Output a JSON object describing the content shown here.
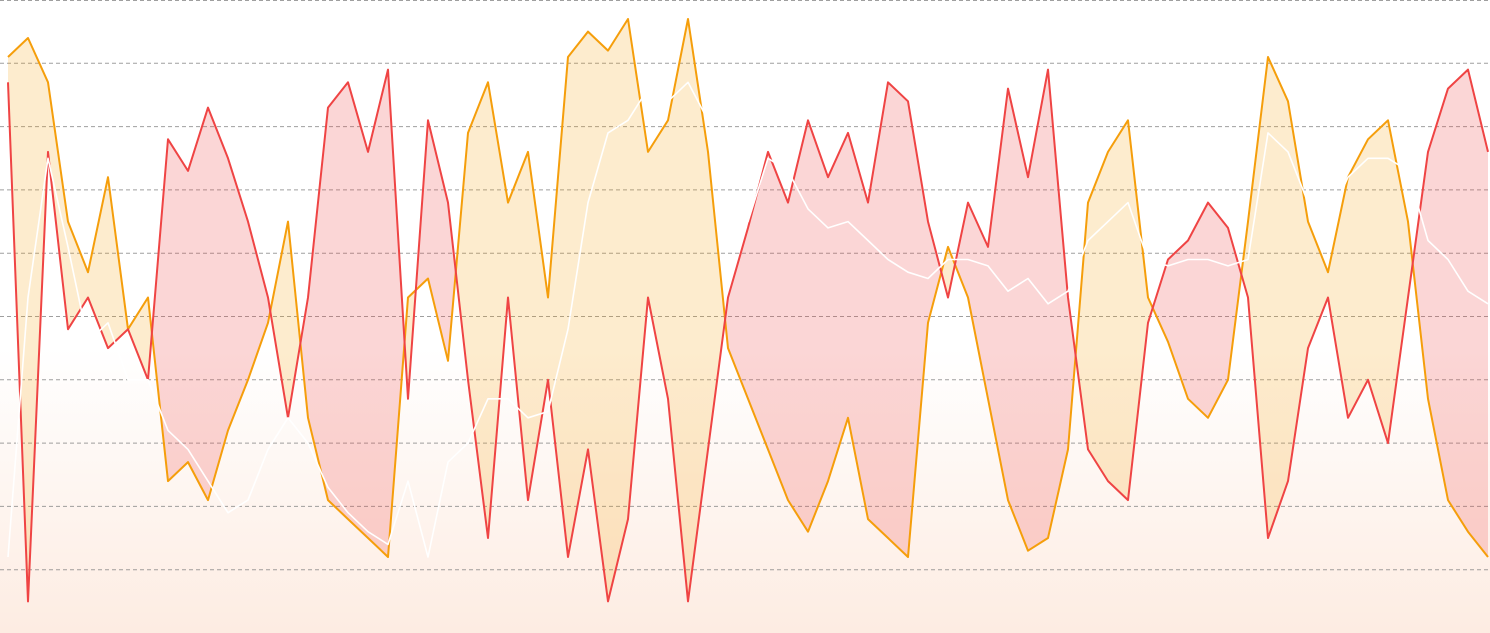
{
  "chart_data": {
    "type": "line",
    "ylim": [
      0,
      100
    ],
    "yticks": [
      10,
      20,
      30,
      40,
      50,
      60,
      70,
      80,
      90,
      100
    ],
    "grid": true,
    "series": [
      {
        "color": "#ef4444",
        "values": [
          87,
          5,
          76,
          48,
          53,
          45,
          48,
          40,
          78,
          73,
          83,
          75,
          65,
          53,
          34,
          53,
          83,
          87,
          76,
          89,
          37,
          81,
          68,
          40,
          15,
          53,
          21,
          40,
          12,
          29,
          5,
          18,
          53,
          37,
          5,
          29,
          53,
          64,
          76,
          68,
          81,
          72,
          79,
          68,
          87,
          84,
          65,
          53,
          68,
          61,
          86,
          72,
          89,
          53,
          29,
          24,
          21,
          49,
          59,
          62,
          68,
          64,
          53,
          15,
          24,
          45,
          53,
          34,
          40,
          30,
          53,
          76,
          86,
          89,
          76
        ]
      },
      {
        "color": "#f59e0b",
        "values": [
          91,
          94,
          87,
          65,
          57,
          72,
          48,
          53,
          24,
          27,
          21,
          32,
          40,
          49,
          65,
          34,
          21,
          18,
          15,
          12,
          53,
          56,
          43,
          79,
          87,
          68,
          76,
          53,
          91,
          95,
          92,
          97,
          76,
          81,
          97,
          76,
          45,
          37,
          29,
          21,
          16,
          24,
          34,
          18,
          15,
          12,
          49,
          61,
          53,
          37,
          21,
          13,
          15,
          29,
          68,
          76,
          81,
          53,
          46,
          37,
          34,
          40,
          65,
          91,
          84,
          65,
          57,
          72,
          78,
          81,
          65,
          37,
          21,
          16,
          12
        ]
      },
      {
        "color": "#ffffff",
        "values": [
          12,
          53,
          75,
          61,
          46,
          49,
          40,
          40,
          32,
          29,
          24,
          19,
          21,
          29,
          34,
          30,
          23,
          19,
          16,
          14,
          24,
          12,
          27,
          30,
          37,
          37,
          34,
          35,
          48,
          68,
          79,
          81,
          86,
          84,
          87,
          81,
          72,
          65,
          75,
          73,
          67,
          64,
          65,
          62,
          59,
          57,
          56,
          59,
          59,
          58,
          54,
          56,
          52,
          54,
          62,
          65,
          68,
          59,
          58,
          59,
          59,
          58,
          59,
          79,
          76,
          68,
          65,
          72,
          75,
          75,
          73,
          62,
          59,
          54,
          52
        ]
      }
    ]
  }
}
